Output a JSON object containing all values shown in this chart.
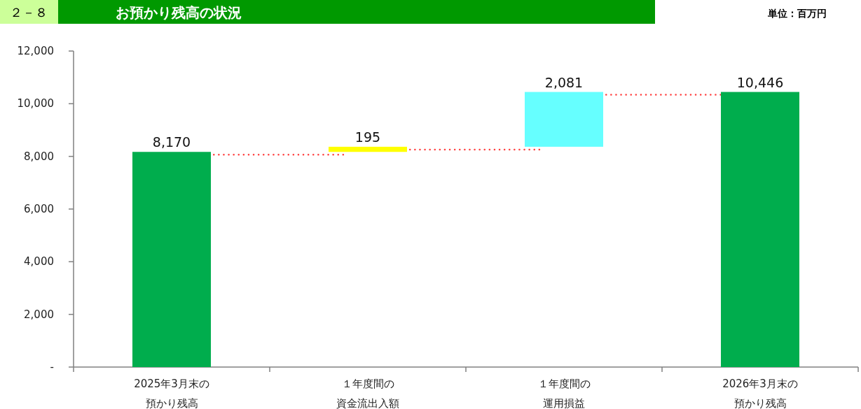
{
  "chart_data": {
    "type": "bar",
    "title": "お預かり残高の状況",
    "annotations": [
      "２－８",
      "単位：百万円"
    ],
    "categories": [
      "2025年3月末の預かり残高",
      "１年度間の資金流出入額",
      "１年度間の運用損益",
      "2026年3月末の預かり残高"
    ],
    "values": [
      8170,
      195,
      2081,
      10446
    ],
    "base": [
      0,
      8170,
      8365,
      0
    ],
    "colors": [
      "#00ad4d",
      "#ffff00",
      "#66ffff",
      "#00ad4d"
    ],
    "value_labels": [
      "8,170",
      "195",
      "2,081",
      "10,446"
    ],
    "ylim": [
      0,
      12000
    ],
    "yticks": [
      {
        "value": 0,
        "label": "-"
      },
      {
        "value": 2000,
        "label": "2,000"
      },
      {
        "value": 4000,
        "label": "4,000"
      },
      {
        "value": 6000,
        "label": "6,000"
      },
      {
        "value": 8000,
        "label": "8,000"
      },
      {
        "value": 10000,
        "label": "10,000"
      },
      {
        "value": 12000,
        "label": "12,000"
      }
    ],
    "grid": false
  }
}
